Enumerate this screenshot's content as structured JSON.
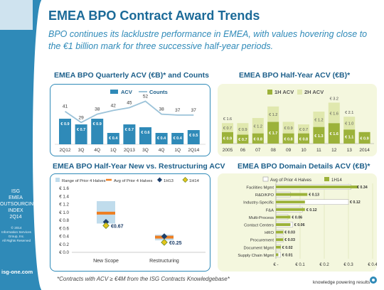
{
  "sidebar": {
    "isg_lines": [
      "ISG",
      "EMEA",
      "OUTSOURCING",
      "INDEX",
      "2Q14"
    ],
    "copyright_lines": [
      "© 2014",
      "Information Services",
      "Group, Inc.",
      "All Rights Reserved"
    ],
    "url": "isg-one.com"
  },
  "title": "EMEA BPO Contract Award Trends",
  "subtitle": "BPO continues its lacklustre performance in EMEA, with values hovering close to the €1 billion mark for three successive half-year periods.",
  "footnote": "*Contracts with ACV ≥ €4M from the ISG Contracts Knowledgebase*",
  "tagline": "knowledge powering results",
  "colors": {
    "blue_bar": "#2f8ab8",
    "blue_line": "#9cc3d9",
    "green_dark": "#9cb23a",
    "green_light": "#e0e8ae",
    "orange": "#ee7f22",
    "navy": "#1d3f6a",
    "gold": "#e5c51a",
    "range": "#c0dcec"
  },
  "chart_data": [
    {
      "type": "bar",
      "title": "EMEA BPO Quarterly ACV (€B)* and Counts",
      "legend": [
        "ACV",
        "Counts"
      ],
      "categories": [
        "2Q12",
        "3Q",
        "4Q",
        "1Q",
        "2Q13",
        "3Q",
        "4Q",
        "1Q",
        "2Q14"
      ],
      "series": [
        {
          "name": "ACV",
          "values": [
            0.9,
            0.7,
            0.9,
            0.4,
            0.7,
            0.6,
            0.4,
            0.4,
            0.5
          ],
          "labels": [
            "€ 0.9",
            "€ 0.7",
            "€ 0.9",
            "€ 0.4",
            "€ 0.7",
            "€ 0.6",
            "€ 0.4",
            "€ 0.4",
            "€ 0.5"
          ]
        },
        {
          "name": "Counts",
          "values": [
            41,
            29,
            38,
            42,
            45,
            52,
            38,
            37,
            37
          ]
        }
      ]
    },
    {
      "type": "bar",
      "stacked": true,
      "title": "EMEA BPO Half-Year ACV (€B)*",
      "legend": [
        "1H ACV",
        "2H ACV"
      ],
      "categories": [
        "2005",
        "06",
        "07",
        "08",
        "09",
        "10",
        "11",
        "12",
        "13",
        "2014"
      ],
      "series": [
        {
          "name": "1H ACV",
          "values": [
            0.9,
            0.7,
            0.8,
            1.7,
            0.8,
            0.8,
            1.3,
            1.6,
            1.1,
            0.9
          ],
          "labels": [
            "€ 0.9",
            "€ 0.7",
            "€ 0.8",
            "€ 1.7",
            "€ 0.8",
            "€ 0.8",
            "€ 1.3",
            "€ 1.6",
            "€ 1.1",
            "€ 0.9"
          ]
        },
        {
          "name": "2H ACV",
          "values": [
            0.7,
            0.9,
            1.2,
            1.2,
            0.9,
            0.7,
            1.2,
            1.6,
            1.0,
            null
          ],
          "labels": [
            "€ 0.7",
            "€ 0.9",
            "€ 1.2",
            "€ 1.2",
            "€ 0.9",
            "€ 0.7",
            "€ 1.2",
            "€ 1.6",
            "€ 1.0",
            ""
          ]
        }
      ],
      "totals": [
        "€ 1.6",
        "",
        "",
        "",
        "",
        "",
        "",
        "€ 3.2",
        "€ 2.1",
        ""
      ]
    },
    {
      "type": "scatter",
      "title": "EMEA BPO Half-Year New vs. Restructuring ACV",
      "legend": [
        "Range of Prior 4 Halves",
        "Avg of Prior 4 Halves",
        "1H13",
        "1H14"
      ],
      "categories": [
        "New Scope",
        "Restructuring"
      ],
      "ylim": [
        0,
        1.6
      ],
      "yticks": [
        "€ 0.0",
        "€ 0.2",
        "€ 0.4",
        "€ 0.6",
        "€ 0.8",
        "€ 1.0",
        "€ 1.2",
        "€ 1.4",
        "€ 1.6"
      ],
      "range": [
        [
          0.72,
          1.28
        ],
        [
          0.3,
          0.44
        ]
      ],
      "avg": [
        0.98,
        0.38
      ],
      "h13": [
        0.76,
        0.4
      ],
      "h14": [
        0.67,
        0.25
      ],
      "h14_labels": [
        "€0.67",
        "€0.25"
      ]
    },
    {
      "type": "bar",
      "orientation": "horizontal",
      "title": "EMEA BPO Domain Details ACV (€B)*",
      "legend": [
        "Avg of Prior 4 Halves",
        "1H14"
      ],
      "categories": [
        "Facilities Mgmt",
        "R&D/KPO",
        "Industry-Specific",
        "F&A",
        "Multi-Process",
        "Contact Centers",
        "HRO",
        "Procurement",
        "Document Mgmt",
        "Supply Chain Mgmt"
      ],
      "series": [
        {
          "name": "Avg of Prior 4 Halves",
          "values": [
            0.31,
            0.06,
            0.3,
            0.11,
            0.05,
            0.07,
            0.03,
            0.03,
            0.02,
            0.02
          ]
        },
        {
          "name": "1H14",
          "values": [
            0.34,
            0.13,
            0.12,
            0.12,
            0.06,
            0.06,
            0.03,
            0.03,
            0.02,
            0.01
          ],
          "labels": [
            "€ 0.34",
            "€ 0.13",
            "€ 0.12",
            "€ 0.12",
            "€ 0.06",
            "€ 0.06",
            "€ 0.03",
            "€ 0.03",
            "€ 0.02",
            "€ 0.01"
          ]
        }
      ],
      "xlim": [
        0,
        0.4
      ],
      "xticks": [
        "€ -",
        "€ 0.1",
        "€ 0.2",
        "€ 0.3",
        "€ 0.4"
      ]
    }
  ]
}
